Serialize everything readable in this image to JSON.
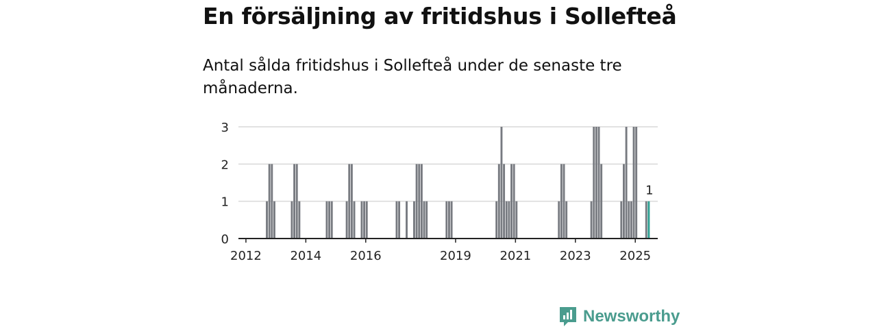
{
  "header": {
    "title": "En försäljning av fritidshus i Sollefteå",
    "subtitle": "Antal sålda fritidshus i Sollefteå under de senaste tre månaderna."
  },
  "brand": {
    "name": "Newsworthy",
    "icon": "newsworthy-logo-icon",
    "color": "#4a9c8e"
  },
  "chart_data": {
    "type": "bar",
    "title": "",
    "xlabel": "",
    "ylabel": "",
    "ylim": [
      0,
      3
    ],
    "yticks": [
      0,
      1,
      2,
      3
    ],
    "x_range": [
      "2011-10",
      "2025-10"
    ],
    "x_tick_labels": [
      "2012",
      "2014",
      "2016",
      "2019",
      "2021",
      "2023",
      "2025"
    ],
    "grid": true,
    "bar_color": "#777a80",
    "highlight_color": "#2a9d8f",
    "highlight_annotation": "1",
    "series": [
      {
        "values": [
          {
            "x": "2012-09",
            "y": 1
          },
          {
            "x": "2012-10",
            "y": 2
          },
          {
            "x": "2012-11",
            "y": 2
          },
          {
            "x": "2012-12",
            "y": 1
          },
          {
            "x": "2013-07",
            "y": 1
          },
          {
            "x": "2013-08",
            "y": 2
          },
          {
            "x": "2013-09",
            "y": 2
          },
          {
            "x": "2013-10",
            "y": 1
          },
          {
            "x": "2014-09",
            "y": 1
          },
          {
            "x": "2014-10",
            "y": 1
          },
          {
            "x": "2014-11",
            "y": 1
          },
          {
            "x": "2015-05",
            "y": 1
          },
          {
            "x": "2015-06",
            "y": 2
          },
          {
            "x": "2015-07",
            "y": 2
          },
          {
            "x": "2015-08",
            "y": 1
          },
          {
            "x": "2015-11",
            "y": 1
          },
          {
            "x": "2015-12",
            "y": 1
          },
          {
            "x": "2016-01",
            "y": 1
          },
          {
            "x": "2017-01",
            "y": 1
          },
          {
            "x": "2017-02",
            "y": 1
          },
          {
            "x": "2017-05",
            "y": 1
          },
          {
            "x": "2017-08",
            "y": 1
          },
          {
            "x": "2017-09",
            "y": 2
          },
          {
            "x": "2017-10",
            "y": 2
          },
          {
            "x": "2017-11",
            "y": 2
          },
          {
            "x": "2017-12",
            "y": 1
          },
          {
            "x": "2018-01",
            "y": 1
          },
          {
            "x": "2018-09",
            "y": 1
          },
          {
            "x": "2018-10",
            "y": 1
          },
          {
            "x": "2018-11",
            "y": 1
          },
          {
            "x": "2020-05",
            "y": 1
          },
          {
            "x": "2020-06",
            "y": 2
          },
          {
            "x": "2020-07",
            "y": 3
          },
          {
            "x": "2020-08",
            "y": 2
          },
          {
            "x": "2020-09",
            "y": 1
          },
          {
            "x": "2020-10",
            "y": 1
          },
          {
            "x": "2020-11",
            "y": 2
          },
          {
            "x": "2020-12",
            "y": 2
          },
          {
            "x": "2021-01",
            "y": 1
          },
          {
            "x": "2022-06",
            "y": 1
          },
          {
            "x": "2022-07",
            "y": 2
          },
          {
            "x": "2022-08",
            "y": 2
          },
          {
            "x": "2022-09",
            "y": 1
          },
          {
            "x": "2023-07",
            "y": 1
          },
          {
            "x": "2023-08",
            "y": 3
          },
          {
            "x": "2023-09",
            "y": 3
          },
          {
            "x": "2023-10",
            "y": 3
          },
          {
            "x": "2023-11",
            "y": 2
          },
          {
            "x": "2024-07",
            "y": 1
          },
          {
            "x": "2024-08",
            "y": 2
          },
          {
            "x": "2024-09",
            "y": 3
          },
          {
            "x": "2024-10",
            "y": 1
          },
          {
            "x": "2024-11",
            "y": 1
          },
          {
            "x": "2024-12",
            "y": 3
          },
          {
            "x": "2025-01",
            "y": 3
          },
          {
            "x": "2025-05",
            "y": 1
          },
          {
            "x": "2025-06",
            "y": 1,
            "highlight": true
          }
        ]
      }
    ]
  }
}
